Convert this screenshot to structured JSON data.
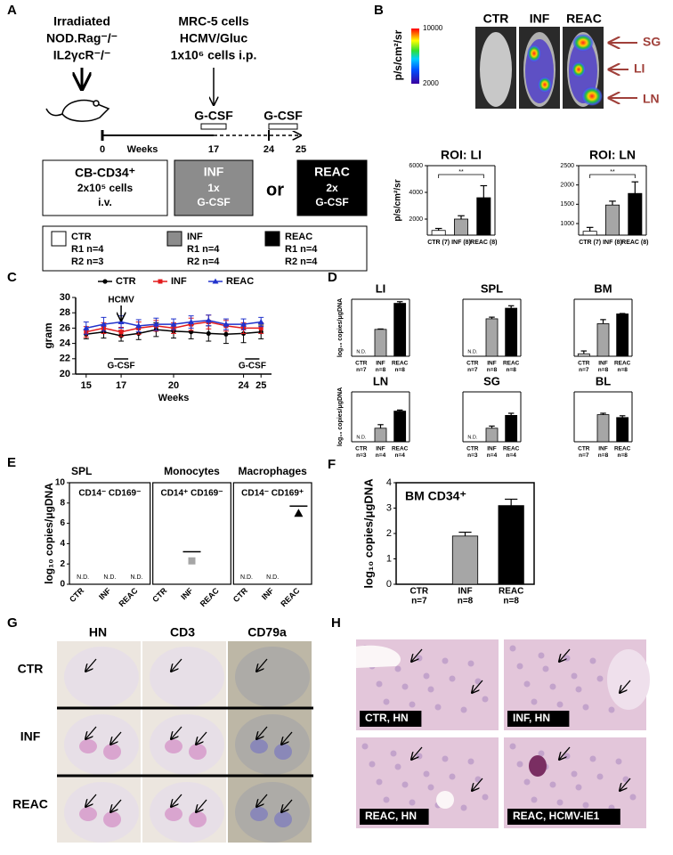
{
  "panel_labels": [
    "A",
    "B",
    "C",
    "D",
    "E",
    "F",
    "G",
    "H"
  ],
  "panel_a": {
    "mouse_lines": [
      "Irradiated",
      "NOD.Rag⁻/⁻",
      "IL2γcR⁻/⁻"
    ],
    "infection_lines": [
      "MRC-5 cells",
      "HCMV/Gluc",
      "1x10⁶ cells i.p."
    ],
    "timeline_ticks": [
      "0",
      "17",
      "24",
      "25"
    ],
    "timeline_label": "Weeks",
    "treatments": [
      "G-CSF",
      "G-CSF"
    ],
    "cb_box": [
      "CB-CD34⁺",
      "2x10⁵ cells",
      "i.v."
    ],
    "inf_box": [
      "INF",
      "1x",
      "G-CSF"
    ],
    "or": "or",
    "reac_box": [
      "REAC",
      "2x",
      "G-CSF"
    ],
    "legend": [
      {
        "name": "CTR",
        "lines": [
          "R1 n=4",
          "R2 n=3"
        ]
      },
      {
        "name": "INF",
        "lines": [
          "R1 n=4",
          "R2 n=4"
        ]
      },
      {
        "name": "REAC",
        "lines": [
          "R1 n=4",
          "R2 n=4"
        ]
      }
    ]
  },
  "panel_b": {
    "colorbar_label": "p/s/cm²/sr",
    "colorbar_max": 10000,
    "colorbar_min": 2000,
    "images": [
      "CTR",
      "INF",
      "REAC"
    ],
    "organs": [
      "SG",
      "LI",
      "LN"
    ]
  },
  "panel_g": {
    "columns": [
      "HN",
      "CD3",
      "CD79a"
    ],
    "rows": [
      "CTR",
      "INF",
      "REAC"
    ]
  },
  "panel_h": {
    "captions": [
      "CTR, HN",
      "INF, HN",
      "REAC, HN",
      "REAC, HCMV-IE1"
    ]
  },
  "chart_data": [
    {
      "type": "bar",
      "title": "ROI: LI",
      "ylabel": "p/s/cm²/sr",
      "categories": [
        "CTR (7)",
        "INF (8)",
        "REAC (8)"
      ],
      "values": [
        1150,
        2000,
        3600
      ],
      "errors": [
        150,
        250,
        900
      ],
      "colors": [
        "#ffffff",
        "#a6a6a6",
        "#000000"
      ],
      "ylim": [
        800,
        6000
      ],
      "yticks": [
        2000,
        4000,
        6000
      ],
      "annotation": "**"
    },
    {
      "type": "bar",
      "title": "ROI: LN",
      "categories": [
        "CTR (7)",
        "INF (8)",
        "REAC (8)"
      ],
      "values": [
        800,
        1480,
        1780
      ],
      "errors": [
        100,
        100,
        300
      ],
      "colors": [
        "#ffffff",
        "#a6a6a6",
        "#000000"
      ],
      "ylim": [
        700,
        2500
      ],
      "yticks": [
        1000,
        1500,
        2000,
        2500
      ],
      "annotation": "**"
    },
    {
      "type": "line",
      "xlabel": "Weeks",
      "ylabel": "gram",
      "x": [
        15,
        16,
        17,
        18,
        19,
        20,
        21,
        22,
        23,
        24,
        25
      ],
      "xlim": [
        14.4,
        25.6
      ],
      "xticks": [
        15,
        17,
        20,
        24,
        25
      ],
      "ylim": [
        20,
        30
      ],
      "yticks": [
        20,
        22,
        24,
        26,
        28,
        30
      ],
      "annotations": [
        "HCMV",
        "G-CSF",
        "G-CSF"
      ],
      "series": [
        {
          "name": "CTR",
          "color": "#000000",
          "marker": "circle",
          "values": [
            25.2,
            25.5,
            25.0,
            25.3,
            25.8,
            25.6,
            25.5,
            25.3,
            25.2,
            25.3,
            25.5
          ],
          "errors": [
            0.6,
            0.8,
            0.7,
            0.8,
            0.9,
            0.9,
            0.9,
            1.0,
            1.2,
            1.2,
            0.9
          ]
        },
        {
          "name": "INF",
          "color": "#e31a1c",
          "marker": "square",
          "values": [
            25.5,
            26.0,
            25.5,
            26.0,
            26.3,
            26.0,
            26.5,
            26.8,
            26.3,
            26.0,
            26.0
          ],
          "errors": [
            0.7,
            0.7,
            0.6,
            0.8,
            0.7,
            0.7,
            0.8,
            0.9,
            0.7,
            0.7,
            0.7
          ]
        },
        {
          "name": "REAC",
          "color": "#2233cc",
          "marker": "triangle",
          "values": [
            26.0,
            26.5,
            26.8,
            26.3,
            26.5,
            26.5,
            26.8,
            27.0,
            26.5,
            26.5,
            26.8
          ],
          "errors": [
            0.8,
            0.9,
            0.8,
            0.8,
            0.8,
            0.7,
            0.8,
            0.7,
            0.7,
            0.7,
            0.6
          ]
        }
      ]
    },
    {
      "type": "bar",
      "title": "LI",
      "ylabel": "log₁₀ copies/μgDNA",
      "categories": [
        "CTR",
        "INF",
        "REAC"
      ],
      "n": [
        "n=7",
        "n=8",
        "n=8"
      ],
      "values": [
        null,
        3.3,
        6.5
      ],
      "errors": [
        null,
        0.05,
        0.2
      ],
      "value_labels": [
        "N.D.",
        null,
        null
      ],
      "colors": [
        "#d9d9d9",
        "#a6a6a6",
        "#000000"
      ],
      "ylim": [
        0,
        7
      ]
    },
    {
      "type": "bar",
      "title": "SPL",
      "categories": [
        "CTR",
        "INF",
        "REAC"
      ],
      "n": [
        "n=7",
        "n=8",
        "n=8"
      ],
      "values": [
        null,
        4.6,
        5.9
      ],
      "errors": [
        null,
        0.2,
        0.3
      ],
      "value_labels": [
        "N.D.",
        null,
        null
      ],
      "colors": [
        "#d9d9d9",
        "#a6a6a6",
        "#000000"
      ],
      "ylim": [
        0,
        7
      ]
    },
    {
      "type": "bar",
      "title": "BM",
      "categories": [
        "CTR",
        "INF",
        "REAC"
      ],
      "n": [
        "n=7",
        "n=8",
        "n=8"
      ],
      "values": [
        0.3,
        4.0,
        5.2
      ],
      "errors": [
        0.35,
        0.5,
        0.05
      ],
      "colors": [
        "#d9d9d9",
        "#a6a6a6",
        "#000000"
      ],
      "ylim": [
        0,
        7
      ]
    },
    {
      "type": "bar",
      "title": "LN",
      "ylabel": "log₁₀ copies/μgDNA",
      "categories": [
        "CTR",
        "INF",
        "REAC"
      ],
      "n": [
        "n=3",
        "n=4",
        "n=4"
      ],
      "values": [
        null,
        1.9,
        4.3
      ],
      "errors": [
        null,
        0.5,
        0.15
      ],
      "value_labels": [
        "N.D.",
        null,
        null
      ],
      "colors": [
        "#d9d9d9",
        "#a6a6a6",
        "#000000"
      ],
      "ylim": [
        0,
        7
      ]
    },
    {
      "type": "bar",
      "title": "SG",
      "categories": [
        "CTR",
        "INF",
        "REAC"
      ],
      "n": [
        "n=3",
        "n=4",
        "n=4"
      ],
      "values": [
        null,
        1.9,
        3.7
      ],
      "errors": [
        null,
        0.3,
        0.3
      ],
      "value_labels": [
        "N.D.",
        null,
        null
      ],
      "colors": [
        "#d9d9d9",
        "#a6a6a6",
        "#000000"
      ],
      "ylim": [
        0,
        7
      ]
    },
    {
      "type": "bar",
      "title": "BL",
      "categories": [
        "CTR",
        "INF",
        "REAC"
      ],
      "n": [
        "n=7",
        "n=8",
        "n=8"
      ],
      "values": [
        null,
        3.8,
        3.4
      ],
      "errors": [
        null,
        0.2,
        0.25
      ],
      "colors": [
        "#d9d9d9",
        "#a6a6a6",
        "#000000"
      ],
      "ylim": [
        0,
        7
      ]
    },
    {
      "type": "dot",
      "ylabel": "log₁₀ copies/μgDNA",
      "ylim": [
        0,
        10
      ],
      "yticks": [
        0,
        2,
        4,
        6,
        8,
        10
      ],
      "categories": [
        "CTR",
        "INF",
        "REAC"
      ],
      "panels": [
        {
          "title": "SPL",
          "subtitle": "CD14⁻ CD169⁻",
          "values": [
            null,
            null,
            null
          ],
          "value_labels": [
            "N.D.",
            "N.D.",
            "N.D."
          ]
        },
        {
          "title": "Monocytes",
          "subtitle": "CD14⁺ CD169⁻",
          "values": [
            null,
            2.3,
            null
          ],
          "means": [
            null,
            3.2,
            null
          ],
          "color": "#a6a6a6",
          "marker": "square"
        },
        {
          "title": "Macrophages",
          "subtitle": "CD14⁻ CD169⁺",
          "values": [
            null,
            null,
            7.0
          ],
          "means": [
            null,
            null,
            7.7
          ],
          "value_labels": [
            "N.D.",
            "N.D.",
            null
          ],
          "color": "#000000",
          "marker": "triangle"
        }
      ]
    },
    {
      "type": "bar",
      "title": "BM CD34⁺",
      "ylabel": "log₁₀ copies/μgDNA",
      "categories": [
        "CTR",
        "INF",
        "REAC"
      ],
      "n": [
        "n=7",
        "n=8",
        "n=8"
      ],
      "values": [
        null,
        1.9,
        3.1
      ],
      "errors": [
        null,
        0.15,
        0.25
      ],
      "colors": [
        "#d9d9d9",
        "#a6a6a6",
        "#000000"
      ],
      "ylim": [
        0,
        4
      ],
      "yticks": [
        0,
        1,
        2,
        3,
        4
      ],
      "frame": true
    }
  ]
}
